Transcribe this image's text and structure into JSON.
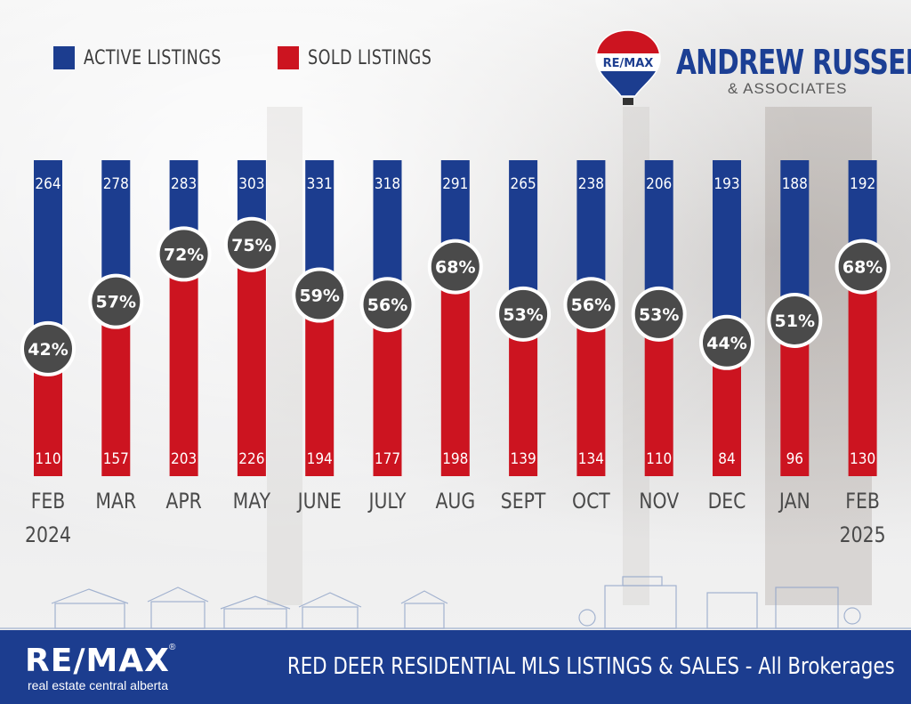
{
  "legend": {
    "active_label": "ACTIVE LISTINGS",
    "sold_label": "SOLD LISTINGS"
  },
  "brand": {
    "balloon_text": "RE/MAX",
    "name": "ANDREW RUSSELL",
    "subname": "& ASSOCIATES"
  },
  "footer": {
    "logo_text": "RE/MAX",
    "logo_reg": "®",
    "tagline": "real estate central alberta",
    "title": "RED DEER RESIDENTIAL MLS LISTINGS & SALES - All Brokerages"
  },
  "colors": {
    "active": "#1c3d8f",
    "sold": "#cc1420",
    "circle": "#4a4a4a",
    "footer": "#1c3d8f"
  },
  "chart_data": {
    "type": "bar",
    "title": "RED DEER RESIDENTIAL MLS LISTINGS & SALES - All Brokerages",
    "categories": [
      [
        "FEB",
        "2024"
      ],
      [
        "MAR"
      ],
      [
        "APR"
      ],
      [
        "MAY"
      ],
      [
        "JUNE"
      ],
      [
        "JULY"
      ],
      [
        "AUG"
      ],
      [
        "SEPT"
      ],
      [
        "OCT"
      ],
      [
        "NOV"
      ],
      [
        "DEC"
      ],
      [
        "JAN"
      ],
      [
        "FEB",
        "2025"
      ]
    ],
    "series": [
      {
        "name": "ACTIVE LISTINGS",
        "values": [
          264,
          278,
          283,
          303,
          331,
          318,
          291,
          265,
          238,
          206,
          193,
          188,
          192
        ]
      },
      {
        "name": "SOLD LISTINGS",
        "values": [
          110,
          157,
          203,
          226,
          194,
          177,
          198,
          139,
          134,
          110,
          84,
          96,
          130
        ]
      }
    ],
    "ratio_labels": [
      "42%",
      "57%",
      "72%",
      "75%",
      "59%",
      "56%",
      "68%",
      "53%",
      "56%",
      "53%",
      "44%",
      "51%",
      "68%"
    ],
    "ratio_values": [
      42,
      57,
      72,
      75,
      59,
      56,
      68,
      53,
      56,
      53,
      44,
      51,
      68
    ],
    "xlabel": "",
    "ylabel": "",
    "legend_position": "top-left"
  }
}
